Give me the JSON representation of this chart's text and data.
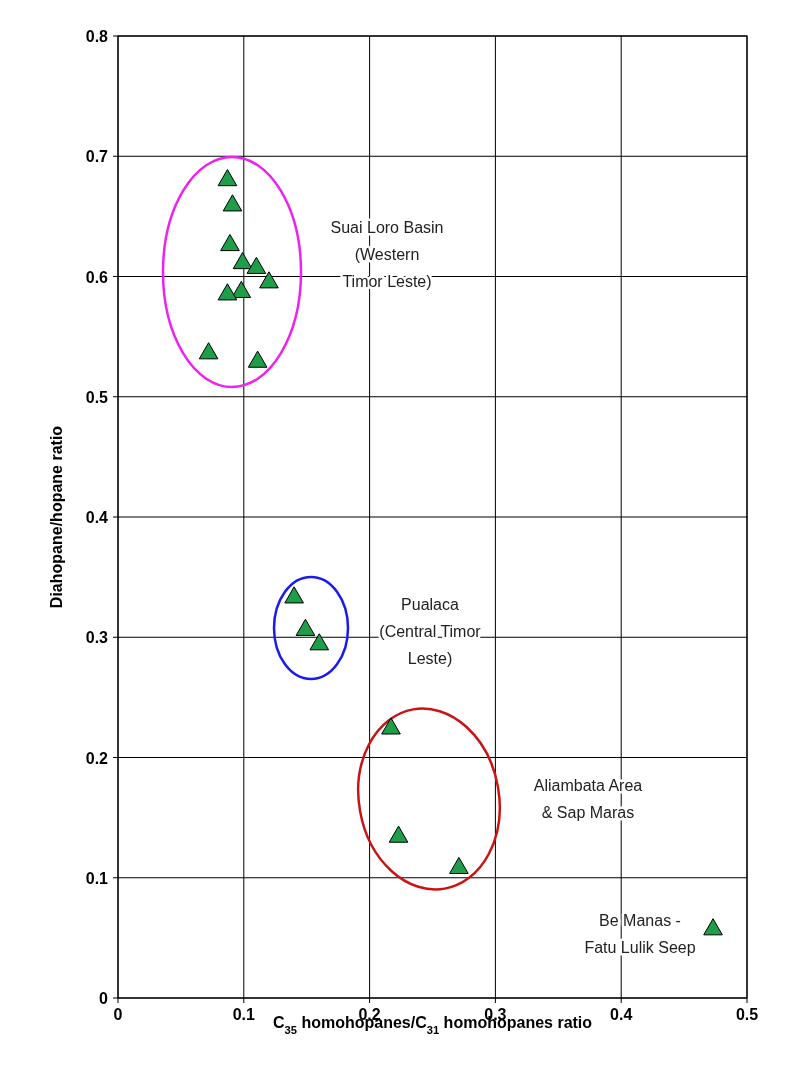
{
  "chart_data": {
    "type": "scatter",
    "xlabel": "C$_{35}$ homohopanes/C$_{31}$ homohopanes ratio",
    "ylabel": "Diahopane/hopane ratio",
    "xlim": [
      0,
      0.5
    ],
    "ylim": [
      0,
      0.8
    ],
    "xticks": [
      0,
      0.1,
      0.2,
      0.3,
      0.4,
      0.5
    ],
    "yticks": [
      0,
      0.1,
      0.2,
      0.3,
      0.4,
      0.5,
      0.6,
      0.7,
      0.8
    ],
    "grid": true,
    "marker": "triangle",
    "series": [
      {
        "color": "#1f9e4a",
        "x": [
          0.087,
          0.091,
          0.089,
          0.099,
          0.11,
          0.12,
          0.098,
          0.087,
          0.072,
          0.111,
          0.14,
          0.149,
          0.16,
          0.217,
          0.223,
          0.271,
          0.473
        ],
        "values": [
          0.68,
          0.659,
          0.626,
          0.611,
          0.607,
          0.595,
          0.587,
          0.585,
          0.536,
          0.529,
          0.333,
          0.306,
          0.294,
          0.224,
          0.134,
          0.108,
          0.057
        ]
      }
    ],
    "annotations": [
      "Suai Loro Basin\n(Western\nTimor Leste)",
      "Pualaca\n(Central Timor\nLeste)",
      "Aliambata Area\n& Sap Maras",
      "Be Manas -\nFatu Lulik Seep"
    ]
  }
}
